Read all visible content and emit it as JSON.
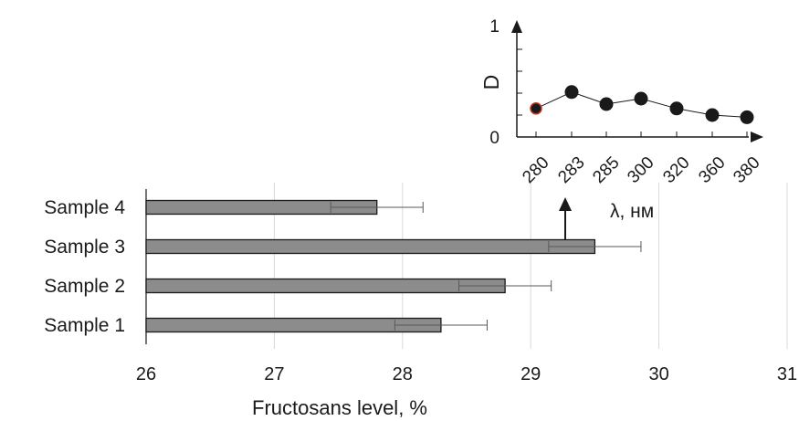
{
  "chart_data": [
    {
      "type": "bar",
      "orientation": "horizontal",
      "categories": [
        "Sample  4",
        "Sample  3",
        "Sample  2",
        "Sample  1"
      ],
      "values": [
        27.8,
        29.5,
        28.8,
        28.3
      ],
      "error": [
        0.36,
        0.36,
        0.36,
        0.36
      ],
      "xlabel": "Fructosans level, %",
      "xlim": [
        26,
        31
      ],
      "xticks": [
        "26",
        "27",
        "28",
        "29",
        "30",
        "31"
      ],
      "grid": true,
      "bar_color": "#8c8c8c"
    },
    {
      "type": "line",
      "x": [
        "280",
        "283",
        "285",
        "300",
        "320",
        "360",
        "380"
      ],
      "y": [
        0.26,
        0.41,
        0.3,
        0.35,
        0.26,
        0.2,
        0.18
      ],
      "xlabel": "λ, нм",
      "ylabel": "D",
      "ylim": [
        0,
        1
      ],
      "yticks": [
        "0",
        "1"
      ],
      "highlight_first_point_color": "#c0392b"
    }
  ]
}
